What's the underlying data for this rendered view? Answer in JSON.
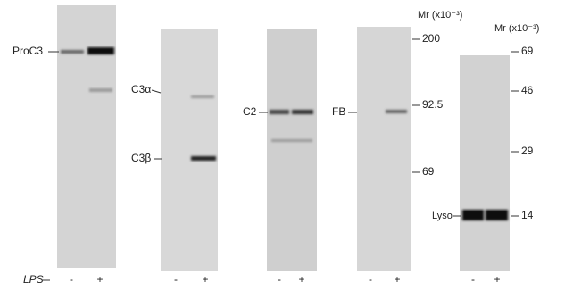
{
  "band_labels": [
    "ProC3",
    "C3α",
    "C3β",
    "C2",
    "FB",
    "Lyso"
  ],
  "scales": [
    {
      "title": "Mr (x10⁻³)",
      "markers": [
        200,
        92.5,
        69
      ]
    },
    {
      "title": "Mr (x10⁻³)",
      "markers": [
        69,
        46,
        29,
        14
      ]
    }
  ],
  "treatment": "LPS",
  "panels": [
    {
      "lanes": [
        "-",
        "+"
      ]
    },
    {
      "lanes": [
        "-",
        "+"
      ]
    },
    {
      "lanes": [
        "-",
        "+"
      ]
    },
    {
      "lanes": [
        "-",
        "+"
      ]
    },
    {
      "lanes": [
        "-",
        "+"
      ]
    }
  ]
}
